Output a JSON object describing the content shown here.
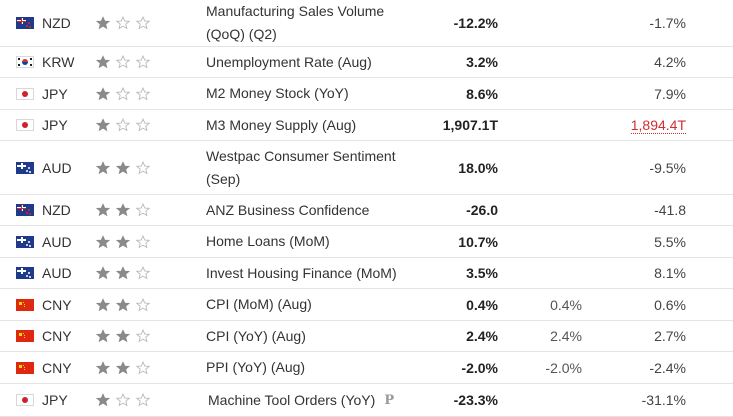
{
  "rows": [
    {
      "flag": "nz",
      "currency": "NZD",
      "stars": 1,
      "event": "Manufacturing Sales Volume (QoQ) (Q2)",
      "actual": "-12.2%",
      "forecast": "",
      "previous": "-1.7%",
      "previous_revised": false,
      "preliminary": false
    },
    {
      "flag": "kr",
      "currency": "KRW",
      "stars": 1,
      "event": "Unemployment Rate (Aug)",
      "actual": "3.2%",
      "forecast": "",
      "previous": "4.2%",
      "previous_revised": false,
      "preliminary": false
    },
    {
      "flag": "jp",
      "currency": "JPY",
      "stars": 1,
      "event": "M2 Money Stock (YoY)",
      "actual": "8.6%",
      "forecast": "",
      "previous": "7.9%",
      "previous_revised": false,
      "preliminary": false
    },
    {
      "flag": "jp",
      "currency": "JPY",
      "stars": 1,
      "event": "M3 Money Supply (Aug)",
      "actual": "1,907.1T",
      "forecast": "",
      "previous": "1,894.4T",
      "previous_revised": true,
      "preliminary": false
    },
    {
      "flag": "au",
      "currency": "AUD",
      "stars": 2,
      "event": "Westpac Consumer Sentiment (Sep)",
      "actual": "18.0%",
      "forecast": "",
      "previous": "-9.5%",
      "previous_revised": false,
      "preliminary": false
    },
    {
      "flag": "nz",
      "currency": "NZD",
      "stars": 2,
      "event": "ANZ Business Confidence",
      "actual": "-26.0",
      "forecast": "",
      "previous": "-41.8",
      "previous_revised": false,
      "preliminary": false
    },
    {
      "flag": "au",
      "currency": "AUD",
      "stars": 2,
      "event": "Home Loans (MoM)",
      "actual": "10.7%",
      "forecast": "",
      "previous": "5.5%",
      "previous_revised": false,
      "preliminary": false
    },
    {
      "flag": "au",
      "currency": "AUD",
      "stars": 2,
      "event": "Invest Housing Finance (MoM)",
      "actual": "3.5%",
      "forecast": "",
      "previous": "8.1%",
      "previous_revised": false,
      "preliminary": false
    },
    {
      "flag": "cn",
      "currency": "CNY",
      "stars": 2,
      "event": "CPI (MoM) (Aug)",
      "actual": "0.4%",
      "forecast": "0.4%",
      "previous": "0.6%",
      "previous_revised": false,
      "preliminary": false
    },
    {
      "flag": "cn",
      "currency": "CNY",
      "stars": 2,
      "event": "CPI (YoY) (Aug)",
      "actual": "2.4%",
      "forecast": "2.4%",
      "previous": "2.7%",
      "previous_revised": false,
      "preliminary": false
    },
    {
      "flag": "cn",
      "currency": "CNY",
      "stars": 2,
      "event": "PPI (YoY) (Aug)",
      "actual": "-2.0%",
      "forecast": "-2.0%",
      "previous": "-2.4%",
      "previous_revised": false,
      "preliminary": false
    },
    {
      "flag": "jp",
      "currency": "JPY",
      "stars": 1,
      "event": "Machine Tool Orders (YoY)",
      "actual": "-23.3%",
      "forecast": "",
      "previous": "-31.1%",
      "previous_revised": false,
      "preliminary": true,
      "preliminary_mark": "P"
    }
  ],
  "star_max": 3,
  "colors": {
    "star_filled": "#8a8a8a",
    "star_empty": "#b9b9b9",
    "revised": "#d12e2e",
    "divider": "#e4e4e4"
  }
}
